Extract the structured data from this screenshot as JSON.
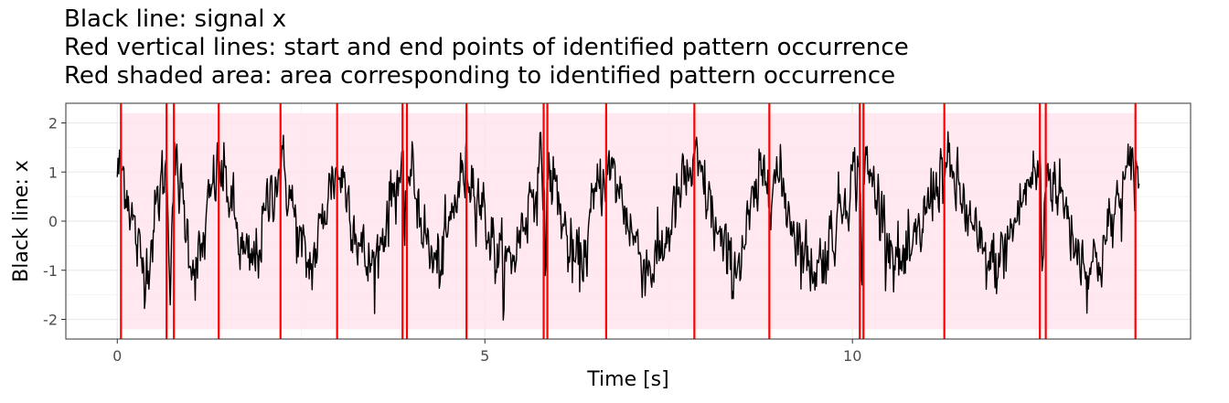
{
  "chart_data": {
    "type": "line",
    "title_lines": [
      "Black line: signal x",
      "Red vertical lines: start and end points of identified pattern occurrence",
      "Red shaded area: area corresponding to identified pattern occurrence"
    ],
    "xlabel": "Time [s]",
    "ylabel": "Black line: x",
    "xlim": [
      -0.7,
      14.6
    ],
    "ylim": [
      -2.4,
      2.4
    ],
    "x_ticks": [
      0,
      5,
      10
    ],
    "x_tick_labels": [
      "0",
      "5",
      "10"
    ],
    "y_ticks": [
      -2,
      -1,
      0,
      1,
      2
    ],
    "y_tick_labels": [
      "-2",
      "-1",
      "0",
      "1",
      "2"
    ],
    "grid": true,
    "colors": {
      "signal": "#000000",
      "boundary": "#ff0000",
      "shade": "#ffe4ec",
      "panel_border": "#333333",
      "grid": "#ebebeb"
    },
    "pattern_boundaries_s": [
      0.05,
      0.67,
      0.77,
      1.38,
      2.22,
      2.99,
      3.88,
      3.94,
      4.75,
      5.8,
      5.85,
      6.65,
      7.85,
      8.87,
      10.1,
      10.15,
      11.25,
      12.55,
      12.63,
      13.85
    ],
    "shade_range": {
      "x": [
        0.05,
        13.85
      ],
      "y": [
        -2.2,
        2.2
      ]
    },
    "signal": {
      "name": "x",
      "sample_rate_hz": 100,
      "duration_s": 13.9,
      "waveform": "noisy periodic pattern, peaks near +1 to +2, troughs near -1 to -2",
      "y_min": -2.1,
      "y_max": 2.1
    }
  }
}
